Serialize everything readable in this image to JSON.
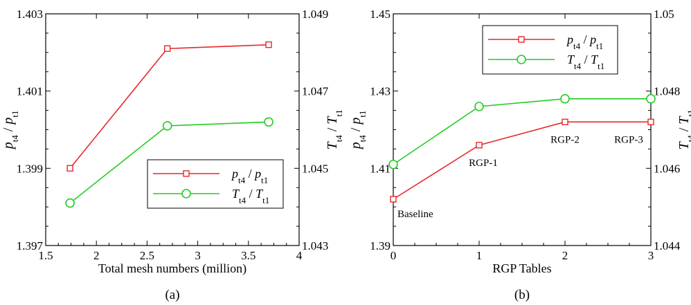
{
  "chart_data": [
    {
      "type": "line",
      "panel_label": "(a)",
      "xlabel": "Total mesh numbers (million)",
      "x_ticks": [
        "1.5",
        "2",
        "2.5",
        "3",
        "3.5",
        "4"
      ],
      "xlim": [
        1.5,
        4
      ],
      "y_left": {
        "label_base": "p",
        "ticks": [
          "1.397",
          "1.399",
          "1.401",
          "1.403"
        ],
        "lim": [
          1.397,
          1.403
        ]
      },
      "y_right": {
        "label_base": "T",
        "ticks": [
          "1.043",
          "1.045",
          "1.047",
          "1.049"
        ],
        "lim": [
          1.043,
          1.049
        ]
      },
      "legend_position": "lower-right",
      "series": [
        {
          "name": "pt4 / pt1",
          "axis": "left",
          "color": "#e8262b",
          "marker": "square",
          "x": [
            1.74,
            2.7,
            3.7
          ],
          "y": [
            1.399,
            1.4021,
            1.4022
          ]
        },
        {
          "name": "Tt4 / Tt1",
          "axis": "right",
          "color": "#22cc22",
          "marker": "circle",
          "x": [
            1.74,
            2.7,
            3.7
          ],
          "y": [
            1.0441,
            1.0461,
            1.0462
          ]
        }
      ]
    },
    {
      "type": "line",
      "panel_label": "(b)",
      "xlabel": "RGP Tables",
      "x_ticks": [
        "0",
        "1",
        "2",
        "3"
      ],
      "xlim": [
        0,
        3
      ],
      "y_left": {
        "label_base": "p",
        "ticks": [
          "1.39",
          "1.41",
          "1.43",
          "1.45"
        ],
        "lim": [
          1.39,
          1.45
        ]
      },
      "y_right": {
        "label_base": "T",
        "ticks": [
          "1.044",
          "1.046",
          "1.048",
          "1.05"
        ],
        "lim": [
          1.044,
          1.05
        ]
      },
      "legend_position": "top-right",
      "annotations": [
        {
          "text": "Baseline",
          "x": 0
        },
        {
          "text": "RGP-1",
          "x": 1
        },
        {
          "text": "RGP-2",
          "x": 2
        },
        {
          "text": "RGP-3",
          "x": 3
        }
      ],
      "series": [
        {
          "name": "pt4 / pt1",
          "axis": "left",
          "color": "#e8262b",
          "marker": "square",
          "x": [
            0,
            1,
            2,
            3
          ],
          "y": [
            1.402,
            1.416,
            1.422,
            1.422
          ]
        },
        {
          "name": "Tt4 / Tt1",
          "axis": "right",
          "color": "#22cc22",
          "marker": "circle",
          "x": [
            0,
            1,
            2,
            3
          ],
          "y": [
            1.0461,
            1.0476,
            1.0478,
            1.0478
          ]
        }
      ]
    }
  ]
}
